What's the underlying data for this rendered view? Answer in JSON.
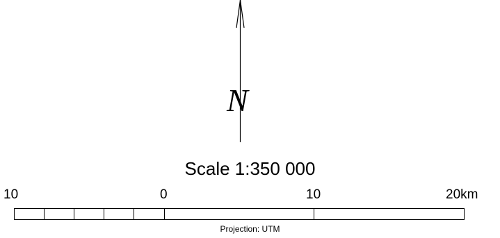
{
  "north_arrow": {
    "letter": "N",
    "icon": "north-arrow-icon"
  },
  "scale": {
    "title": "Scale  1:350 000",
    "ticks": [
      "10",
      "0",
      "10",
      "20km"
    ],
    "projection": "Projection: UTM"
  }
}
